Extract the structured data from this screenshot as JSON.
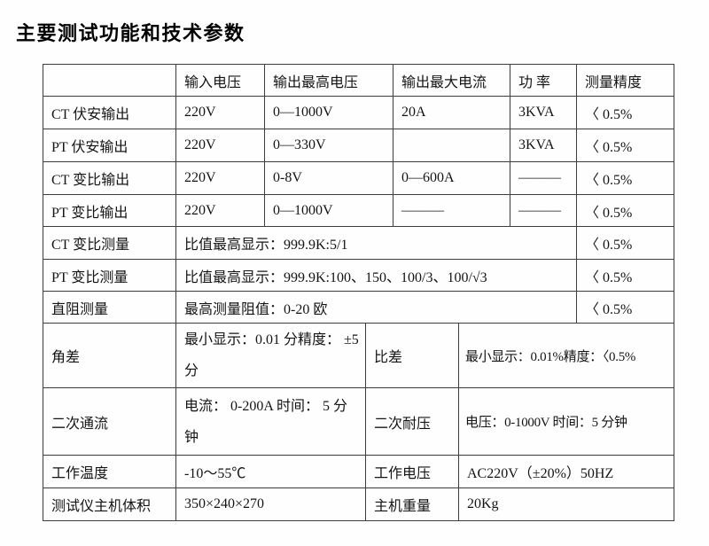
{
  "colors": {
    "background": "#fefefe",
    "border": "#3c3c3c",
    "text": "#141414"
  },
  "page": {
    "title": "主要测试功能和技术参数"
  },
  "table": {
    "headers": [
      "",
      "输入电压",
      "输出最高电压",
      "输出最大电流",
      "功 率",
      "测量精度"
    ],
    "output_rows": [
      {
        "label": "CT 伏安输出",
        "input_voltage": "220V",
        "max_output_voltage": "0—1000V",
        "max_output_current": "20A",
        "power": "3KVA",
        "accuracy": "〈 0.5%"
      },
      {
        "label": "PT 伏安输出",
        "input_voltage": "220V",
        "max_output_voltage": "0—330V",
        "max_output_current": "",
        "power": "3KVA",
        "accuracy": "〈 0.5%"
      },
      {
        "label": "CT 变比输出",
        "input_voltage": "220V",
        "max_output_voltage": "0-8V",
        "max_output_current": "0—600A",
        "power": "———",
        "accuracy": "〈 0.5%"
      },
      {
        "label": "PT 变比输出",
        "input_voltage": "220V",
        "max_output_voltage": "0—1000V",
        "max_output_current": "———",
        "power": "———",
        "accuracy": "〈 0.5%"
      }
    ],
    "span_rows": [
      {
        "label": "CT 变比测量",
        "content": "比值最高显示：999.9K:5/1",
        "accuracy": "〈 0.5%"
      },
      {
        "label": "PT 变比测量",
        "content": "比值最高显示：999.9K:100、150、100/3、100/√3",
        "accuracy": "〈 0.5%"
      },
      {
        "label": "直阻测量",
        "content": "最高测量阻值：0-20 欧",
        "accuracy": "〈 0.5%"
      }
    ],
    "pair_rows": [
      {
        "label": "角差",
        "content": "最小显示：0.01 分精度： ±5 分",
        "label2": "比差",
        "content2": "最小显示：0.01%精度：〈0.5%"
      },
      {
        "label": "二次通流",
        "content": "电流： 0-200A 时间： 5 分钟",
        "label2": "二次耐压",
        "content2": "电压：0-1000V 时间：5 分钟"
      },
      {
        "label": "工作温度",
        "content": "-10～55℃",
        "label2": "工作电压",
        "content2": "AC220V（±20%）50HZ"
      },
      {
        "label": "测试仪主机体积",
        "content": "350×240×270",
        "label2": "主机重量",
        "content2": "20Kg"
      }
    ]
  }
}
